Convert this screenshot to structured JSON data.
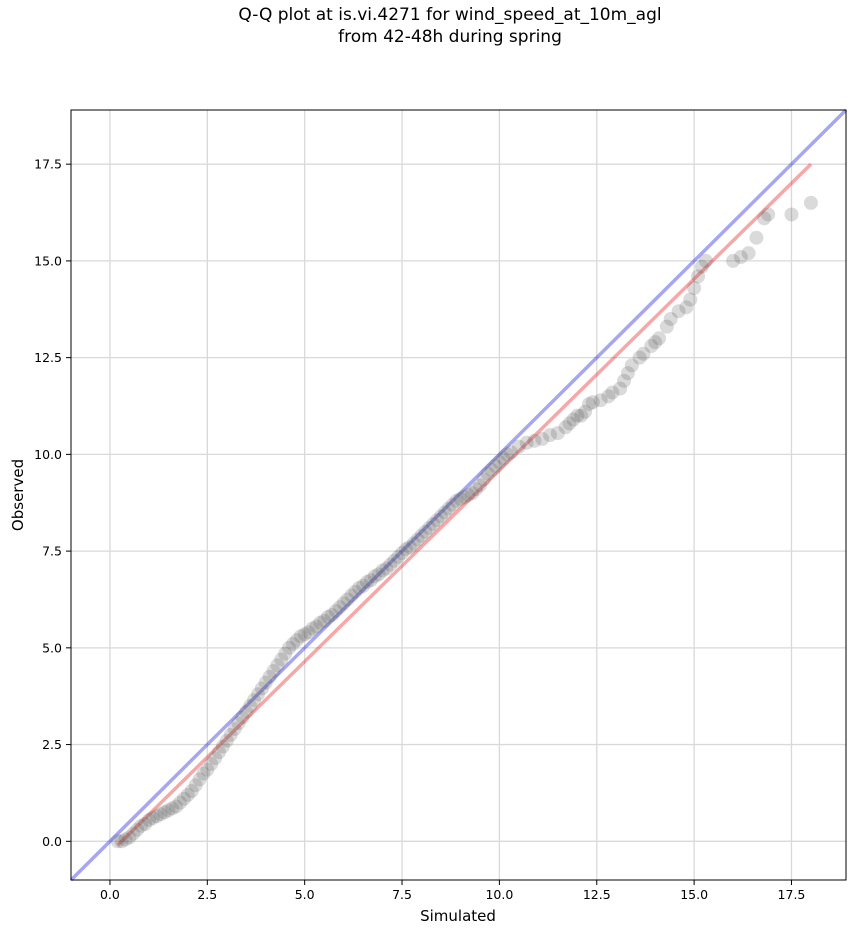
{
  "chart_data": {
    "type": "scatter",
    "title_line1": "Q-Q plot at is.vi.4271 for wind_speed_at_10m_agl",
    "title_line2": "from 42-48h during spring",
    "xlabel": "Simulated",
    "ylabel": "Observed",
    "xlim": [
      -1.0,
      18.9
    ],
    "ylim": [
      -1.0,
      18.9
    ],
    "xticks": [
      "0.0",
      "2.5",
      "5.0",
      "7.5",
      "10.0",
      "12.5",
      "15.0",
      "17.5"
    ],
    "xtick_values": [
      0,
      2.5,
      5,
      7.5,
      10,
      12.5,
      15,
      17.5
    ],
    "yticks": [
      "0.0",
      "2.5",
      "5.0",
      "7.5",
      "10.0",
      "12.5",
      "15.0",
      "17.5"
    ],
    "ytick_values": [
      0,
      2.5,
      5,
      7.5,
      10,
      12.5,
      15,
      17.5
    ],
    "grid": true,
    "reference_line": {
      "name": "1:1",
      "color": "#0000dd",
      "from": [
        -1.0,
        -1.0
      ],
      "to": [
        18.9,
        18.9
      ]
    },
    "fit_line": {
      "color": "#ee2222",
      "from": [
        0.2,
        -0.1
      ],
      "to": [
        18.0,
        17.5
      ]
    },
    "point_color": "#555555",
    "series": [
      {
        "quantiles": [
          [
            0.2,
            0.0
          ],
          [
            0.3,
            0.0
          ],
          [
            0.4,
            0.05
          ],
          [
            0.5,
            0.1
          ],
          [
            0.6,
            0.2
          ],
          [
            0.7,
            0.3
          ],
          [
            0.8,
            0.4
          ],
          [
            0.9,
            0.45
          ],
          [
            1.0,
            0.55
          ],
          [
            1.1,
            0.6
          ],
          [
            1.2,
            0.65
          ],
          [
            1.3,
            0.7
          ],
          [
            1.4,
            0.75
          ],
          [
            1.5,
            0.8
          ],
          [
            1.6,
            0.85
          ],
          [
            1.7,
            0.9
          ],
          [
            1.8,
            1.0
          ],
          [
            1.9,
            1.1
          ],
          [
            2.0,
            1.2
          ],
          [
            2.1,
            1.3
          ],
          [
            2.2,
            1.45
          ],
          [
            2.3,
            1.6
          ],
          [
            2.4,
            1.75
          ],
          [
            2.5,
            1.85
          ],
          [
            2.6,
            2.0
          ],
          [
            2.7,
            2.15
          ],
          [
            2.8,
            2.3
          ],
          [
            2.9,
            2.45
          ],
          [
            3.0,
            2.6
          ],
          [
            3.1,
            2.75
          ],
          [
            3.2,
            2.9
          ],
          [
            3.3,
            3.05
          ],
          [
            3.4,
            3.2
          ],
          [
            3.5,
            3.35
          ],
          [
            3.6,
            3.5
          ],
          [
            3.7,
            3.65
          ],
          [
            3.8,
            3.8
          ],
          [
            3.9,
            3.95
          ],
          [
            4.0,
            4.1
          ],
          [
            4.1,
            4.25
          ],
          [
            4.2,
            4.4
          ],
          [
            4.3,
            4.55
          ],
          [
            4.4,
            4.7
          ],
          [
            4.5,
            4.85
          ],
          [
            4.6,
            5.0
          ],
          [
            4.7,
            5.1
          ],
          [
            4.8,
            5.2
          ],
          [
            4.9,
            5.3
          ],
          [
            5.0,
            5.35
          ],
          [
            5.1,
            5.4
          ],
          [
            5.2,
            5.5
          ],
          [
            5.3,
            5.55
          ],
          [
            5.4,
            5.65
          ],
          [
            5.5,
            5.7
          ],
          [
            5.6,
            5.8
          ],
          [
            5.7,
            5.85
          ],
          [
            5.8,
            5.95
          ],
          [
            5.9,
            6.05
          ],
          [
            6.0,
            6.15
          ],
          [
            6.1,
            6.25
          ],
          [
            6.2,
            6.35
          ],
          [
            6.3,
            6.45
          ],
          [
            6.4,
            6.55
          ],
          [
            6.5,
            6.6
          ],
          [
            6.6,
            6.7
          ],
          [
            6.7,
            6.75
          ],
          [
            6.8,
            6.85
          ],
          [
            6.9,
            6.9
          ],
          [
            7.0,
            7.0
          ],
          [
            7.1,
            7.05
          ],
          [
            7.2,
            7.15
          ],
          [
            7.3,
            7.25
          ],
          [
            7.4,
            7.35
          ],
          [
            7.5,
            7.45
          ],
          [
            7.6,
            7.55
          ],
          [
            7.7,
            7.6
          ],
          [
            7.8,
            7.7
          ],
          [
            7.9,
            7.8
          ],
          [
            8.0,
            7.9
          ],
          [
            8.1,
            8.0
          ],
          [
            8.2,
            8.1
          ],
          [
            8.3,
            8.2
          ],
          [
            8.4,
            8.3
          ],
          [
            8.5,
            8.4
          ],
          [
            8.6,
            8.5
          ],
          [
            8.7,
            8.6
          ],
          [
            8.8,
            8.7
          ],
          [
            8.9,
            8.8
          ],
          [
            9.0,
            8.85
          ],
          [
            9.1,
            8.9
          ],
          [
            9.2,
            8.95
          ],
          [
            9.3,
            9.0
          ],
          [
            9.4,
            9.1
          ],
          [
            9.5,
            9.2
          ],
          [
            9.6,
            9.35
          ],
          [
            9.7,
            9.5
          ],
          [
            9.8,
            9.6
          ],
          [
            9.9,
            9.7
          ],
          [
            10.0,
            9.8
          ],
          [
            10.1,
            9.9
          ],
          [
            10.2,
            10.0
          ],
          [
            10.3,
            10.05
          ],
          [
            10.5,
            10.2
          ],
          [
            10.7,
            10.3
          ],
          [
            10.9,
            10.35
          ],
          [
            11.1,
            10.4
          ],
          [
            11.3,
            10.5
          ],
          [
            11.5,
            10.55
          ],
          [
            11.7,
            10.7
          ],
          [
            11.8,
            10.8
          ],
          [
            11.9,
            10.9
          ],
          [
            12.0,
            11.0
          ],
          [
            12.1,
            11.0
          ],
          [
            12.2,
            11.1
          ],
          [
            12.3,
            11.3
          ],
          [
            12.4,
            11.35
          ],
          [
            12.6,
            11.4
          ],
          [
            12.8,
            11.5
          ],
          [
            12.9,
            11.6
          ],
          [
            13.1,
            11.7
          ],
          [
            13.2,
            11.9
          ],
          [
            13.3,
            12.1
          ],
          [
            13.4,
            12.3
          ],
          [
            13.6,
            12.5
          ],
          [
            13.7,
            12.6
          ],
          [
            13.9,
            12.8
          ],
          [
            14.0,
            12.9
          ],
          [
            14.1,
            13.0
          ],
          [
            14.3,
            13.3
          ],
          [
            14.4,
            13.5
          ],
          [
            14.6,
            13.7
          ],
          [
            14.8,
            13.8
          ],
          [
            14.9,
            14.0
          ],
          [
            15.0,
            14.3
          ],
          [
            15.1,
            14.6
          ],
          [
            15.2,
            14.85
          ],
          [
            15.3,
            15.0
          ],
          [
            16.0,
            15.0
          ],
          [
            16.2,
            15.1
          ],
          [
            16.4,
            15.2
          ],
          [
            16.6,
            15.6
          ],
          [
            16.8,
            16.1
          ],
          [
            16.9,
            16.2
          ],
          [
            17.5,
            16.2
          ],
          [
            18.0,
            16.5
          ]
        ]
      }
    ]
  }
}
